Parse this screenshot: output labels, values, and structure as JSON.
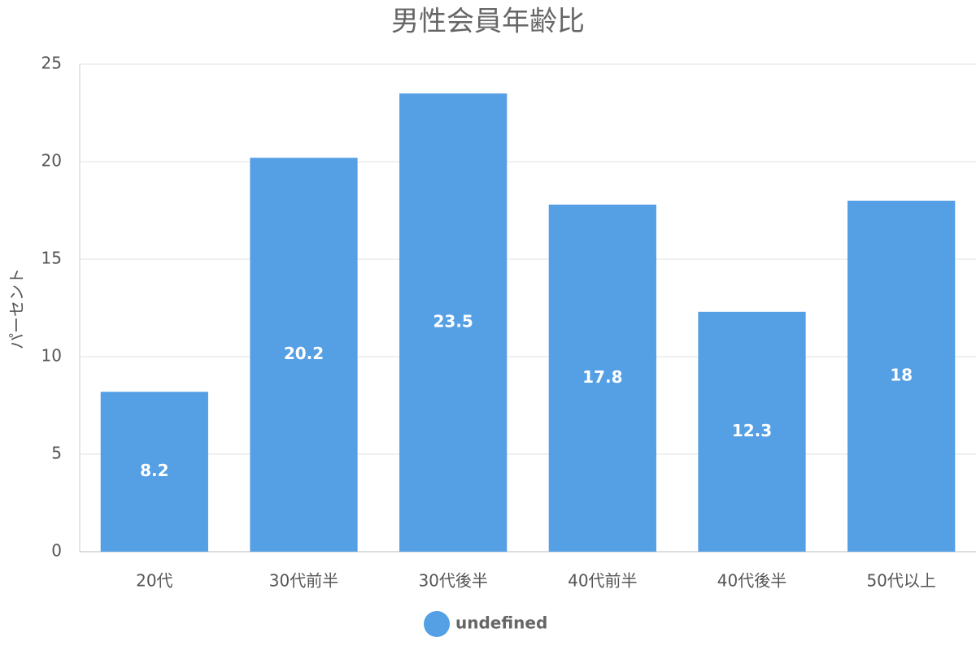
{
  "chart_data": {
    "type": "bar",
    "title": "男性会員年齢比",
    "y_label": "パーセント",
    "categories": [
      "20代",
      "30代前半",
      "30代後半",
      "40代前半",
      "40代後半",
      "50代以上"
    ],
    "series": [
      {
        "name": "undefined",
        "color": "#559fe4",
        "values": [
          8.2,
          20.2,
          23.5,
          17.8,
          12.3,
          18
        ]
      }
    ],
    "ylim": [
      0,
      25
    ],
    "yticks": [
      0,
      5,
      10,
      15,
      20,
      25
    ],
    "grid": true,
    "legend": "bottom"
  }
}
